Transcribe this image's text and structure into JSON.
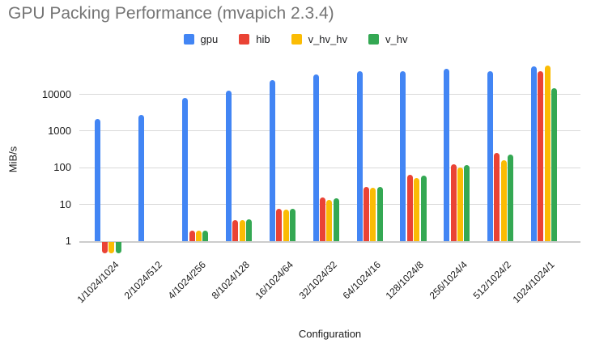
{
  "chart_data": {
    "type": "bar",
    "title": "GPU Packing Performance (mvapich 2.3.4)",
    "xlabel": "Configuration",
    "ylabel": "MiB/s",
    "y_scale": "log",
    "y_ticks": [
      1,
      10,
      100,
      1000,
      10000
    ],
    "ylim": [
      0.5,
      80000
    ],
    "grid": true,
    "legend_position": "top",
    "categories": [
      "1/1024/1024",
      "2/1024/512",
      "4/1024/256",
      "8/1024/128",
      "16/1024/64",
      "32/1024/32",
      "64/1024/16",
      "128/1024/8",
      "256/1024/4",
      "512/1024/2",
      "1024/1024/1"
    ],
    "series": [
      {
        "name": "gpu",
        "color": "#4285F4",
        "values": [
          2100,
          2700,
          7800,
          12500,
          24000,
          34000,
          41000,
          42000,
          47000,
          42000,
          55000
        ]
      },
      {
        "name": "hib",
        "color": "#EA4335",
        "values": [
          0.5,
          1,
          1.9,
          3.7,
          7.4,
          15,
          29,
          62,
          120,
          245,
          42000
        ]
      },
      {
        "name": "v_hv_hv",
        "color": "#FBBC04",
        "values": [
          0.5,
          1,
          1.9,
          3.6,
          7.0,
          13,
          28,
          50,
          100,
          160,
          58000
        ]
      },
      {
        "name": "v_hv",
        "color": "#34A853",
        "values": [
          0.5,
          1,
          1.9,
          3.8,
          7.5,
          14.5,
          30,
          60,
          115,
          220,
          14000
        ]
      }
    ]
  }
}
